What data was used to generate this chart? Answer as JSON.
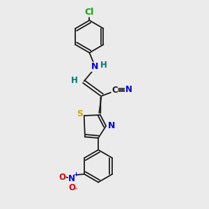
{
  "background_color": "#ebebeb",
  "bond_color": "#1a1a1a",
  "atom_colors": {
    "C": "#1a1a1a",
    "N": "#0000dd",
    "S": "#ccaa00",
    "Cl": "#00aa00",
    "O": "#dd0000",
    "H": "#007777"
  },
  "figsize": [
    3.0,
    3.0
  ],
  "dpi": 100,
  "lw": 1.3,
  "r_hex": 0.075
}
